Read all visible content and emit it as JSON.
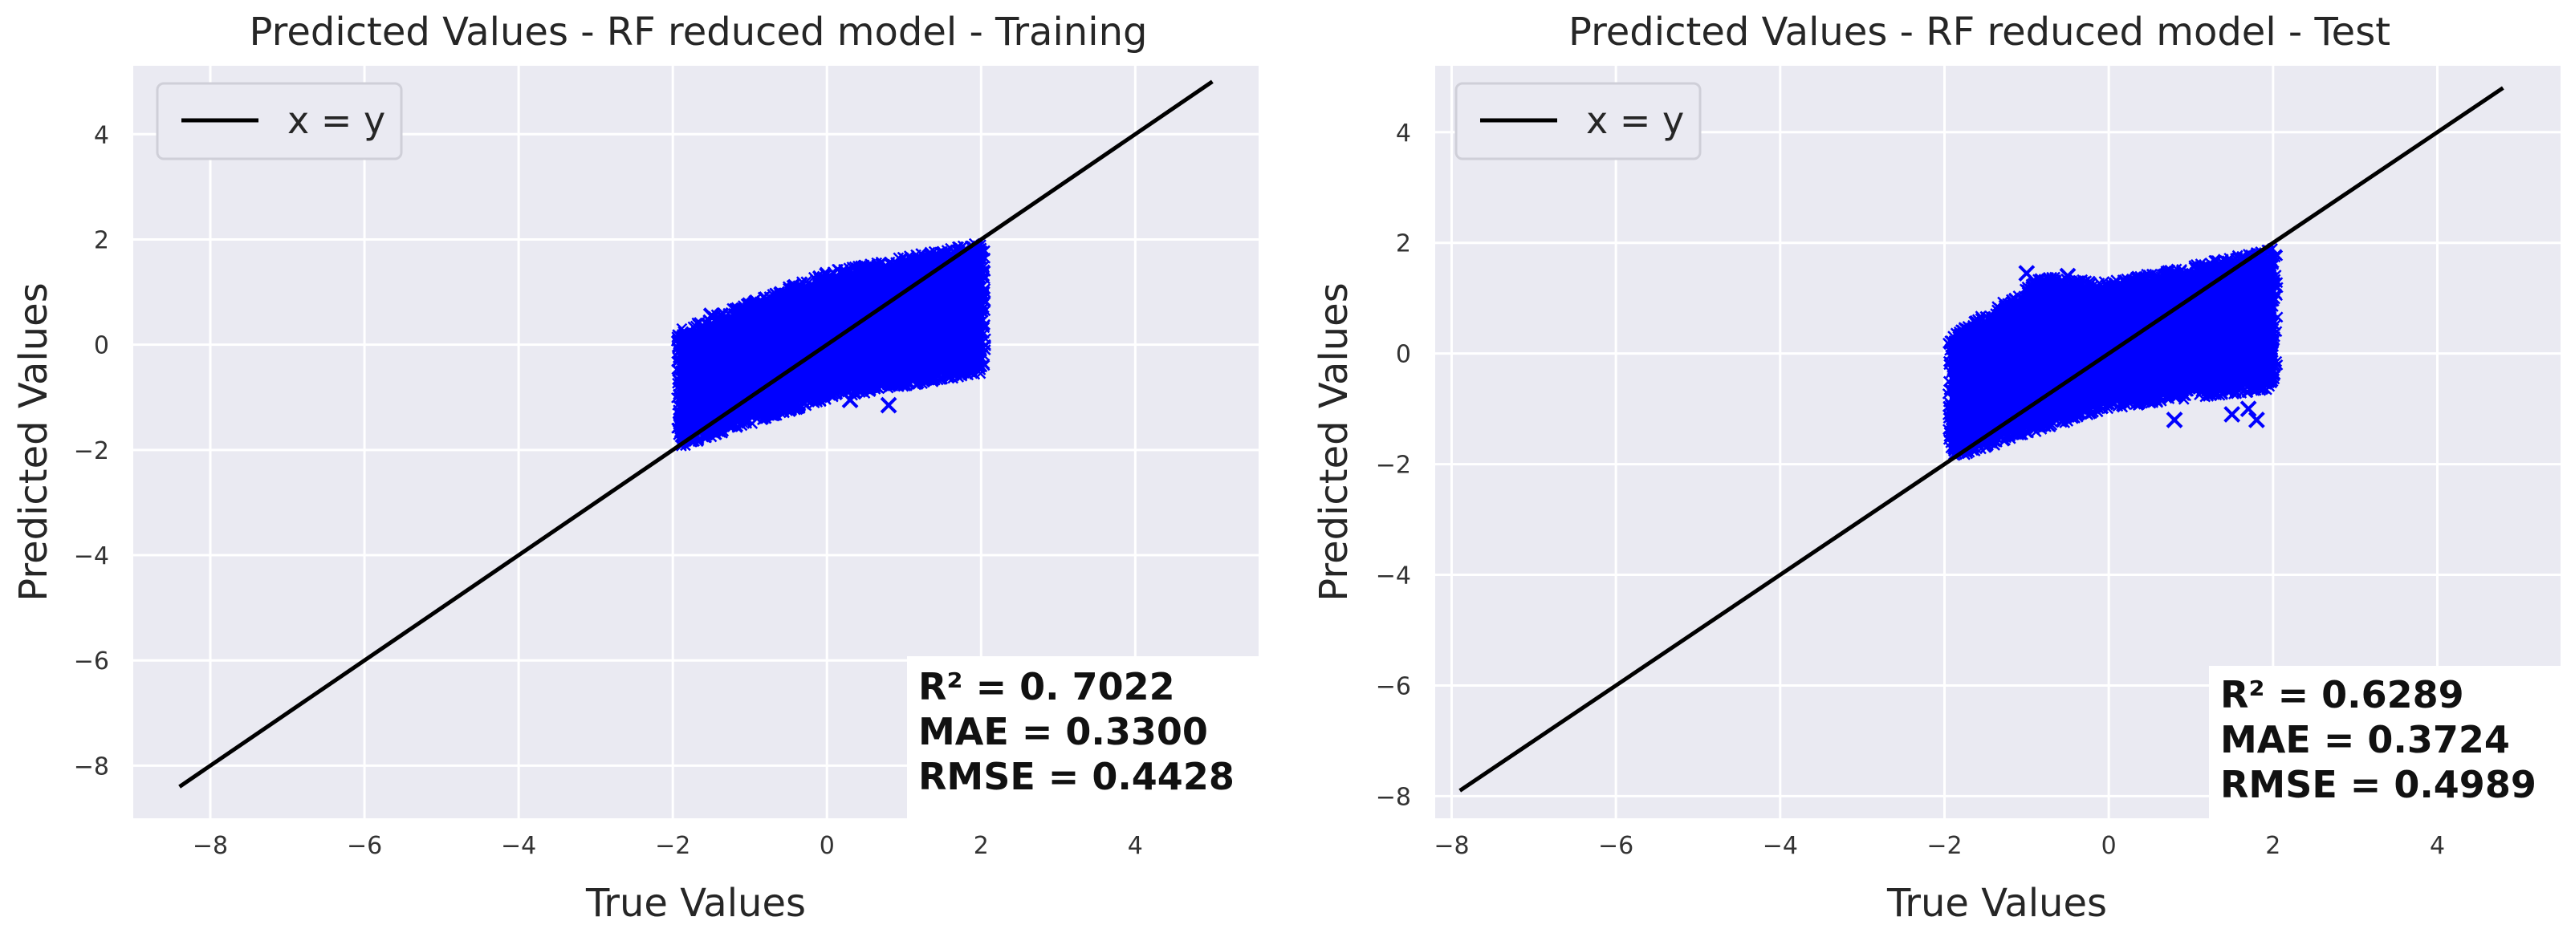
{
  "chart_data": [
    {
      "type": "scatter",
      "title": "Predicted Values - RF reduced model - Training",
      "xlabel": "True Values",
      "ylabel": "Predicted Values",
      "xlim": [
        -9.0,
        5.6
      ],
      "ylim": [
        -9.0,
        5.3
      ],
      "xticks": [
        -8,
        -6,
        -4,
        -2,
        0,
        2,
        4
      ],
      "yticks": [
        -8,
        -6,
        -4,
        -2,
        0,
        2,
        4
      ],
      "grid": true,
      "legend": {
        "location": "upper-left",
        "entries": [
          "x = y"
        ]
      },
      "reference_line": {
        "name": "x = y",
        "x": [
          -8.4,
          5.0
        ],
        "y": [
          -8.4,
          5.0
        ],
        "color": "#000000"
      },
      "point_cloud": {
        "description_free": true,
        "x_range": [
          -1.9,
          2.0
        ],
        "lower_edge": [
          [
            -1.9,
            -1.85
          ],
          [
            0.0,
            -0.95
          ],
          [
            2.0,
            -0.45
          ]
        ],
        "upper_edge": [
          [
            -1.9,
            0.2
          ],
          [
            0.0,
            1.3
          ],
          [
            2.0,
            1.85
          ]
        ],
        "color": "#0000ff",
        "marker": "x"
      },
      "outliers": [
        [
          -1.5,
          0.55
        ],
        [
          0.3,
          -1.05
        ],
        [
          0.8,
          -1.15
        ],
        [
          0.1,
          -0.9
        ]
      ],
      "stats": {
        "r2": "R² = 0. 7022",
        "mae": "MAE = 0.3300",
        "rmse": "RMSE = 0.4428"
      }
    },
    {
      "type": "scatter",
      "title": "Predicted Values - RF reduced model - Test",
      "xlabel": "True Values",
      "ylabel": "Predicted Values",
      "xlim": [
        -8.2,
        5.5
      ],
      "ylim": [
        -8.4,
        5.2
      ],
      "xticks": [
        -8,
        -6,
        -4,
        -2,
        0,
        2,
        4
      ],
      "yticks": [
        -8,
        -6,
        -4,
        -2,
        0,
        2,
        4
      ],
      "grid": true,
      "legend": {
        "location": "upper-left",
        "entries": [
          "x = y"
        ]
      },
      "reference_line": {
        "name": "x = y",
        "x": [
          -7.9,
          4.8
        ],
        "y": [
          -7.9,
          4.8
        ],
        "color": "#000000"
      },
      "point_cloud": {
        "x_range": [
          -1.9,
          2.0
        ],
        "lower_edge": [
          [
            -1.9,
            -1.8
          ],
          [
            0.0,
            -0.9
          ],
          [
            2.0,
            -0.55
          ]
        ],
        "upper_edge": [
          [
            -1.9,
            0.25
          ],
          [
            -0.8,
            1.3
          ],
          [
            0.0,
            1.2
          ],
          [
            2.0,
            1.8
          ]
        ],
        "color": "#0000ff",
        "marker": "x"
      },
      "outliers": [
        [
          1.5,
          -1.1
        ],
        [
          0.8,
          -1.2
        ],
        [
          1.8,
          -1.2
        ],
        [
          1.7,
          -1.0
        ],
        [
          -1.0,
          1.45
        ],
        [
          -0.5,
          1.4
        ]
      ],
      "stats": {
        "r2": "R² = 0.6289",
        "mae": "MAE = 0.3724",
        "rmse": "RMSE = 0.4989"
      }
    }
  ]
}
